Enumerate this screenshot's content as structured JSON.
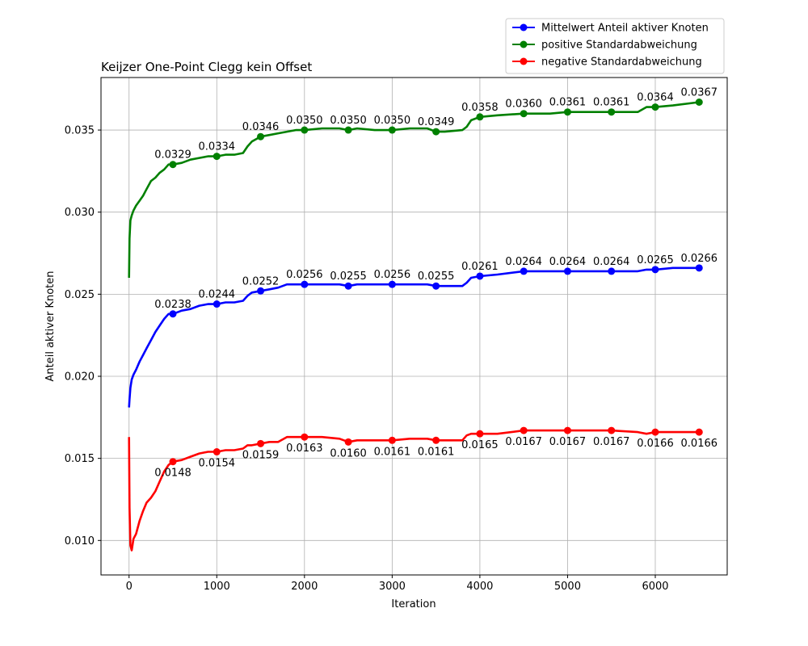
{
  "chart_data": {
    "type": "line",
    "title": "Keijzer One-Point Clegg kein Offset",
    "xlabel": "Iteration",
    "ylabel": "Anteil aktiver Knoten",
    "xlim": [
      -320,
      6820
    ],
    "ylim": [
      0.0079,
      0.0382
    ],
    "xticks": [
      0,
      1000,
      2000,
      3000,
      4000,
      5000,
      6000
    ],
    "yticks": [
      0.01,
      0.015,
      0.02,
      0.025,
      0.03,
      0.035
    ],
    "xtick_labels": [
      "0",
      "1000",
      "2000",
      "3000",
      "4000",
      "5000",
      "6000"
    ],
    "ytick_labels": [
      "0.010",
      "0.015",
      "0.020",
      "0.025",
      "0.030",
      "0.035"
    ],
    "grid": true,
    "legend_position": "above-top-right",
    "series": [
      {
        "name": "Mittelwert Anteil aktiver Knoten",
        "color": "#0000ff",
        "markers_x": [
          500,
          1000,
          1500,
          2000,
          2500,
          3000,
          3500,
          4000,
          4500,
          5000,
          5500,
          6000,
          6500
        ],
        "markers_y": [
          0.0238,
          0.0244,
          0.0252,
          0.0256,
          0.0255,
          0.0256,
          0.0255,
          0.0261,
          0.0264,
          0.0264,
          0.0264,
          0.0265,
          0.0266
        ],
        "labels": [
          "0.0238",
          "0.0244",
          "0.0252",
          "0.0256",
          "0.0255",
          "0.0256",
          "0.0255",
          "0.0261",
          "0.0264",
          "0.0264",
          "0.0264",
          "0.0265",
          "0.0266"
        ],
        "curve_x": [
          0,
          5,
          15,
          30,
          50,
          80,
          120,
          160,
          200,
          250,
          300,
          350,
          400,
          450,
          500,
          600,
          700,
          800,
          900,
          1000,
          1100,
          1200,
          1300,
          1350,
          1400,
          1500,
          1600,
          1700,
          1800,
          1900,
          2000,
          2200,
          2400,
          2500,
          2600,
          2800,
          3000,
          3200,
          3400,
          3500,
          3600,
          3800,
          3850,
          3900,
          4000,
          4200,
          4500,
          4800,
          5000,
          5200,
          5500,
          5800,
          5900,
          6000,
          6200,
          6500
        ],
        "curve_y": [
          0.0181,
          0.0186,
          0.0193,
          0.0198,
          0.0201,
          0.0204,
          0.0209,
          0.0213,
          0.0217,
          0.0222,
          0.0227,
          0.0231,
          0.0235,
          0.0238,
          0.0238,
          0.024,
          0.0241,
          0.0243,
          0.0244,
          0.0244,
          0.0245,
          0.0245,
          0.0246,
          0.0249,
          0.0251,
          0.0252,
          0.0253,
          0.0254,
          0.0256,
          0.0256,
          0.0256,
          0.0256,
          0.0256,
          0.0255,
          0.0256,
          0.0256,
          0.0256,
          0.0256,
          0.0256,
          0.0255,
          0.0255,
          0.0255,
          0.0257,
          0.026,
          0.0261,
          0.0262,
          0.0264,
          0.0264,
          0.0264,
          0.0264,
          0.0264,
          0.0264,
          0.0265,
          0.0265,
          0.0266,
          0.0266
        ]
      },
      {
        "name": "positive Standardabweichung",
        "color": "#008000",
        "markers_x": [
          500,
          1000,
          1500,
          2000,
          2500,
          3000,
          3500,
          4000,
          4500,
          5000,
          5500,
          6000,
          6500
        ],
        "markers_y": [
          0.0329,
          0.0334,
          0.0346,
          0.035,
          0.035,
          0.035,
          0.0349,
          0.0358,
          0.036,
          0.0361,
          0.0361,
          0.0364,
          0.0367
        ],
        "labels": [
          "0.0329",
          "0.0334",
          "0.0346",
          "0.0350",
          "0.0350",
          "0.0350",
          "0.0349",
          "0.0358",
          "0.0360",
          "0.0361",
          "0.0361",
          "0.0364",
          "0.0367"
        ],
        "curve_x": [
          0,
          5,
          15,
          30,
          50,
          80,
          120,
          160,
          200,
          250,
          300,
          350,
          400,
          450,
          500,
          600,
          700,
          800,
          900,
          1000,
          1100,
          1200,
          1300,
          1350,
          1400,
          1500,
          1600,
          1700,
          1800,
          1900,
          2000,
          2200,
          2400,
          2500,
          2600,
          2800,
          3000,
          3200,
          3400,
          3500,
          3600,
          3800,
          3850,
          3900,
          4000,
          4200,
          4500,
          4800,
          5000,
          5200,
          5500,
          5800,
          5900,
          6000,
          6200,
          6500
        ],
        "curve_y": [
          0.026,
          0.0284,
          0.0295,
          0.0298,
          0.0301,
          0.0304,
          0.0307,
          0.031,
          0.0314,
          0.0319,
          0.0321,
          0.0324,
          0.0326,
          0.0329,
          0.0329,
          0.033,
          0.0332,
          0.0333,
          0.0334,
          0.0334,
          0.0335,
          0.0335,
          0.0336,
          0.034,
          0.0343,
          0.0346,
          0.0347,
          0.0348,
          0.0349,
          0.035,
          0.035,
          0.0351,
          0.0351,
          0.035,
          0.0351,
          0.035,
          0.035,
          0.0351,
          0.0351,
          0.0349,
          0.0349,
          0.035,
          0.0352,
          0.0356,
          0.0358,
          0.0359,
          0.036,
          0.036,
          0.0361,
          0.0361,
          0.0361,
          0.0361,
          0.0364,
          0.0364,
          0.0365,
          0.0367
        ]
      },
      {
        "name": "negative Standardabweichung",
        "color": "#ff0000",
        "markers_x": [
          500,
          1000,
          1500,
          2000,
          2500,
          3000,
          3500,
          4000,
          4500,
          5000,
          5500,
          6000,
          6500
        ],
        "markers_y": [
          0.0148,
          0.0154,
          0.0159,
          0.0163,
          0.016,
          0.0161,
          0.0161,
          0.0165,
          0.0167,
          0.0167,
          0.0167,
          0.0166,
          0.0166
        ],
        "labels": [
          "0.0148",
          "0.0154",
          "0.0159",
          "0.0163",
          "0.0160",
          "0.0161",
          "0.0161",
          "0.0165",
          "0.0167",
          "0.0167",
          "0.0167",
          "0.0166",
          "0.0166"
        ],
        "curve_x": [
          0,
          5,
          15,
          30,
          50,
          80,
          120,
          160,
          200,
          250,
          300,
          350,
          400,
          450,
          500,
          600,
          700,
          800,
          900,
          1000,
          1100,
          1200,
          1300,
          1350,
          1400,
          1500,
          1600,
          1700,
          1800,
          1900,
          2000,
          2200,
          2400,
          2500,
          2600,
          2800,
          3000,
          3200,
          3400,
          3500,
          3600,
          3800,
          3850,
          3900,
          4000,
          4200,
          4500,
          4800,
          5000,
          5200,
          5500,
          5800,
          5900,
          6000,
          6200,
          6500
        ],
        "curve_y": [
          0.0163,
          0.012,
          0.0097,
          0.0094,
          0.0101,
          0.0104,
          0.0112,
          0.0118,
          0.0123,
          0.0126,
          0.013,
          0.0136,
          0.0142,
          0.0146,
          0.0148,
          0.0149,
          0.0151,
          0.0153,
          0.0154,
          0.0154,
          0.0155,
          0.0155,
          0.0156,
          0.0158,
          0.0158,
          0.0159,
          0.016,
          0.016,
          0.0163,
          0.0163,
          0.0163,
          0.0163,
          0.0162,
          0.016,
          0.0161,
          0.0161,
          0.0161,
          0.0162,
          0.0162,
          0.0161,
          0.0161,
          0.0161,
          0.0164,
          0.0165,
          0.0165,
          0.0165,
          0.0167,
          0.0167,
          0.0167,
          0.0167,
          0.0167,
          0.0166,
          0.0165,
          0.0166,
          0.0166,
          0.0166
        ]
      }
    ]
  }
}
